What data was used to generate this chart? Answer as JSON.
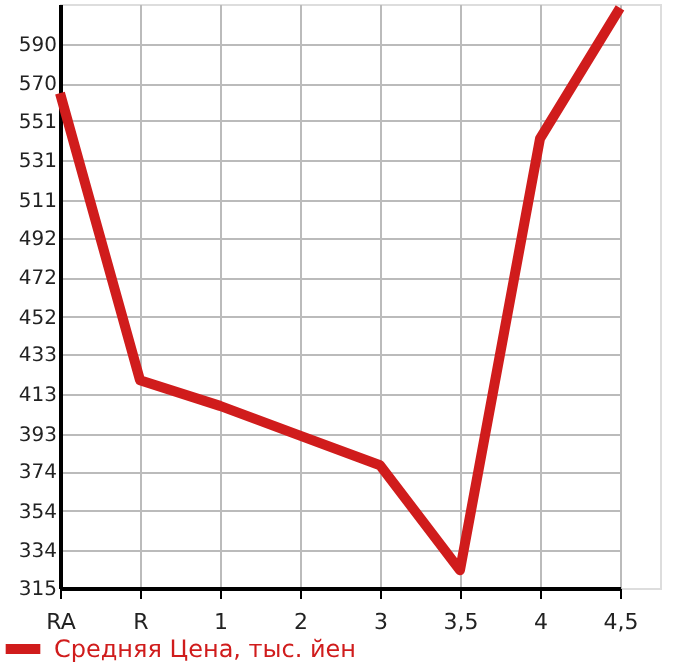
{
  "chart_data": {
    "type": "line",
    "categories": [
      "RA",
      "R",
      "1",
      "2",
      "3",
      "3,5",
      "4",
      "4,5"
    ],
    "series": [
      {
        "name": "Средняя Цена, тыс. йен",
        "color": "#d01c1c",
        "values": [
          565,
          420,
          407,
          392,
          377,
          324,
          542,
          608
        ]
      }
    ],
    "ylim": [
      315,
      610
    ],
    "yticks": [
      315,
      334,
      354,
      374,
      393,
      413,
      433,
      452,
      472,
      492,
      511,
      531,
      551,
      570,
      590
    ],
    "grid": true,
    "legend": "bottom left",
    "marker": "none",
    "line_style": "solid"
  }
}
